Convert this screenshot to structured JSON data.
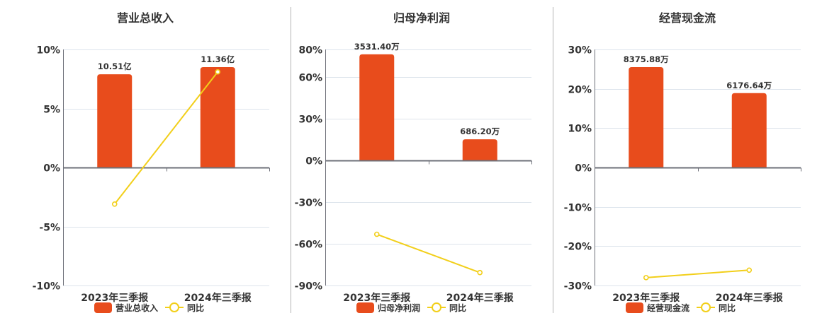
{
  "colors": {
    "bar": "#e84c1c",
    "line": "#f2cf1a",
    "grid": "#dde4ec",
    "axis": "#6e7079",
    "separator": "#b4b4b4"
  },
  "panels": [
    {
      "title": "营业总收入",
      "legend": {
        "bar_label": "营业总收入",
        "line_label": "同比"
      }
    },
    {
      "title": "归母净利润",
      "legend": {
        "bar_label": "归母净利润",
        "line_label": "同比"
      }
    },
    {
      "title": "经营现金流",
      "legend": {
        "bar_label": "经营现金流",
        "line_label": "同比"
      }
    }
  ],
  "chart_data": [
    {
      "type": "bar",
      "title": "营业总收入",
      "categories": [
        "2023年三季报",
        "2024年三季报"
      ],
      "series": [
        {
          "name": "营业总收入",
          "type": "bar",
          "labels": [
            "10.51亿",
            "11.36亿"
          ],
          "values": [
            10.51,
            11.36
          ],
          "unit": "亿",
          "bar_height_pct": [
            7.9,
            8.5
          ]
        },
        {
          "name": "同比",
          "type": "line",
          "values": [
            -3.1,
            8.1
          ],
          "unit": "%"
        }
      ],
      "yticks": [
        "10%",
        "5%",
        "0%",
        "-5%",
        "-10%"
      ],
      "ytick_values": [
        10,
        5,
        0,
        -5,
        -10
      ],
      "ylim": [
        -10,
        10
      ],
      "xlabel": "",
      "ylabel": "",
      "grid": true,
      "legend_position": "bottom"
    },
    {
      "type": "bar",
      "title": "归母净利润",
      "categories": [
        "2023年三季报",
        "2024年三季报"
      ],
      "series": [
        {
          "name": "归母净利润",
          "type": "bar",
          "labels": [
            "3531.40万",
            "686.20万"
          ],
          "values": [
            3531.4,
            686.2
          ],
          "unit": "万",
          "bar_height_pct": [
            76.5,
            15.3
          ]
        },
        {
          "name": "同比",
          "type": "line",
          "values": [
            -53.1,
            -80.7
          ],
          "unit": "%"
        }
      ],
      "yticks": [
        "80%",
        "60%",
        "30%",
        "0%",
        "-30%",
        "-60%",
        "-90%"
      ],
      "ytick_values": [
        80,
        60,
        30,
        0,
        -30,
        -60,
        -90
      ],
      "ylim": [
        -90,
        80
      ],
      "xlabel": "",
      "ylabel": "",
      "grid": true,
      "legend_position": "bottom"
    },
    {
      "type": "bar",
      "title": "经营现金流",
      "categories": [
        "2023年三季报",
        "2024年三季报"
      ],
      "series": [
        {
          "name": "经营现金流",
          "type": "bar",
          "labels": [
            "8375.88万",
            "6176.64万"
          ],
          "values": [
            8375.88,
            6176.64
          ],
          "unit": "万",
          "bar_height_pct": [
            25.5,
            18.9
          ]
        },
        {
          "name": "同比",
          "type": "line",
          "values": [
            -28.0,
            -26.1
          ],
          "unit": "%"
        }
      ],
      "yticks": [
        "30%",
        "20%",
        "10%",
        "0%",
        "-10%",
        "-20%",
        "-30%"
      ],
      "ytick_values": [
        30,
        20,
        10,
        0,
        -10,
        -20,
        -30
      ],
      "ylim": [
        -30,
        30
      ],
      "xlabel": "",
      "ylabel": "",
      "grid": true,
      "legend_position": "bottom"
    }
  ]
}
